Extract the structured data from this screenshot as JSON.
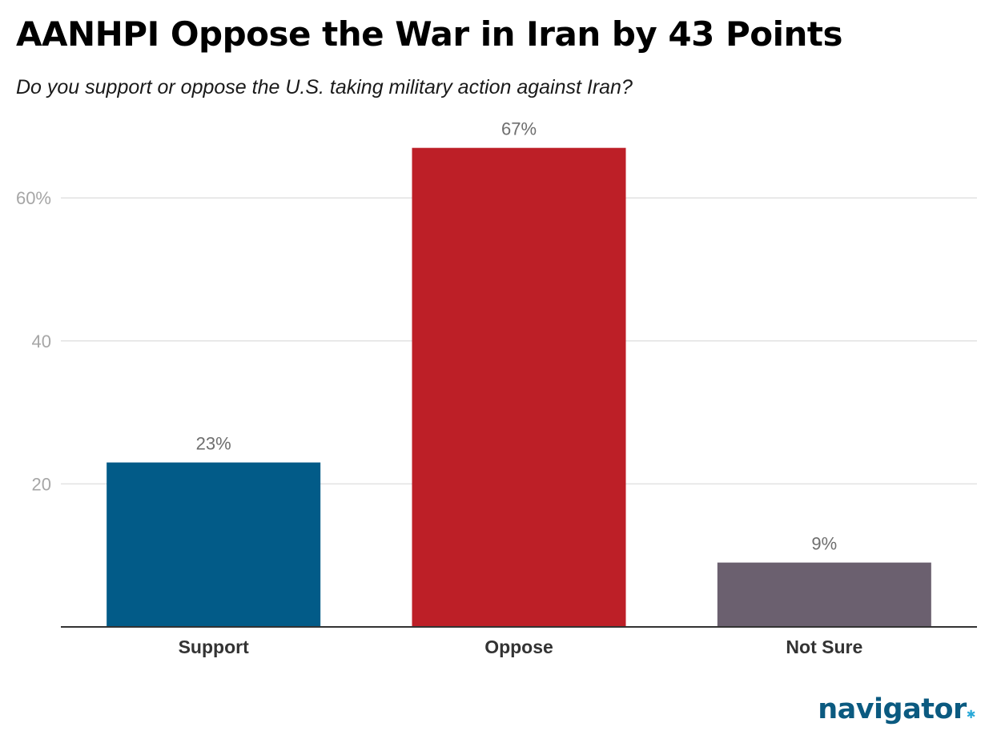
{
  "title": "AANHPI Oppose the War in Iran by 43 Points",
  "subtitle": "Do you support or oppose the U.S. taking military action against Iran?",
  "logo_text": "navigator",
  "colors": {
    "support": "#025b88",
    "oppose": "#bd1f27",
    "not_sure": "#6b606f",
    "grid": "#e2e2e2",
    "axis": "#333333",
    "tick_label": "#a6a6a6",
    "data_label": "#6e6e6e",
    "category_label": "#333333",
    "brand": "#0b5a80"
  },
  "chart_data": {
    "type": "bar",
    "title": "AANHPI Oppose the War in Iran by 43 Points",
    "subtitle": "Do you support or oppose the U.S. taking military action against Iran?",
    "categories": [
      "Support",
      "Oppose",
      "Not Sure"
    ],
    "values": [
      23,
      67,
      9
    ],
    "value_labels": [
      "23%",
      "67%",
      "9%"
    ],
    "bar_colors": [
      "#025b88",
      "#bd1f27",
      "#6b606f"
    ],
    "y_ticks": [
      20,
      40,
      60
    ],
    "y_tick_labels": [
      "20",
      "40",
      "60%"
    ],
    "ylim": [
      0,
      70
    ],
    "grid": true,
    "legend": "none",
    "xlabel": "",
    "ylabel": ""
  }
}
